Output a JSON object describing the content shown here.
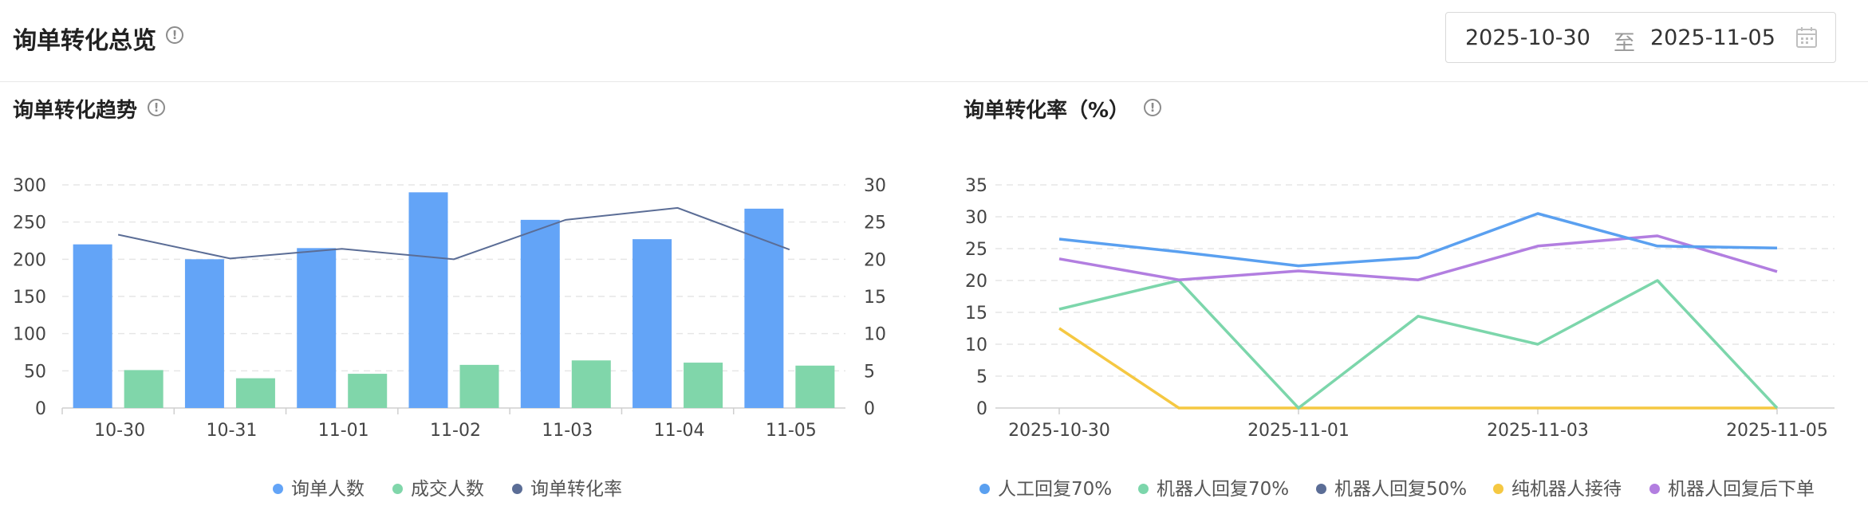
{
  "page": {
    "title": "询单转化总览",
    "date_start": "2025-10-30",
    "date_sep": "至",
    "date_end": "2025-11-05"
  },
  "chart_data": [
    {
      "type": "bar",
      "title": "询单转化趋势",
      "categories": [
        "10-30",
        "10-31",
        "11-01",
        "11-02",
        "11-03",
        "11-04",
        "11-05"
      ],
      "series": [
        {
          "name": "询单人数",
          "kind": "bar",
          "axis": "left",
          "color": "#63a4f7",
          "values": [
            220,
            200,
            215,
            290,
            253,
            227,
            268
          ]
        },
        {
          "name": "成交人数",
          "kind": "bar",
          "axis": "left",
          "color": "#80d6aa",
          "values": [
            51,
            40,
            46,
            58,
            64,
            61,
            57
          ]
        },
        {
          "name": "询单转化率",
          "kind": "line",
          "axis": "right",
          "color": "#5b6d96",
          "values": [
            23.3,
            20.1,
            21.4,
            20.0,
            25.3,
            26.9,
            21.3
          ]
        }
      ],
      "ylim_left": [
        0,
        300
      ],
      "yticks_left": [
        0,
        50,
        100,
        150,
        200,
        250,
        300
      ],
      "ylim_right": [
        0,
        30
      ],
      "yticks_right": [
        0,
        5,
        10,
        15,
        20,
        25,
        30
      ],
      "grid": true,
      "legend": "bottom"
    },
    {
      "type": "line",
      "title": "询单转化率（%）",
      "x": [
        "2025-10-30",
        "2025-10-31",
        "2025-11-01",
        "2025-11-02",
        "2025-11-03",
        "2025-11-04",
        "2025-11-05"
      ],
      "xticks": [
        "2025-10-30",
        "2025-11-01",
        "2025-11-03",
        "2025-11-05"
      ],
      "series": [
        {
          "name": "人工回复70%",
          "color": "#5aa0f0",
          "values": [
            26.5,
            24.5,
            22.3,
            23.6,
            30.5,
            25.4,
            25.1
          ]
        },
        {
          "name": "机器人回复70%",
          "color": "#7cd6ab",
          "values": [
            15.5,
            20.0,
            0,
            14.4,
            10.0,
            20.0,
            0
          ]
        },
        {
          "name": "机器人回复50%",
          "color": "#5b6d96",
          "values": [
            null,
            null,
            null,
            null,
            null,
            null,
            null
          ]
        },
        {
          "name": "纯机器人接待",
          "color": "#f5c842",
          "values": [
            12.5,
            0,
            0,
            0,
            0,
            0,
            0
          ]
        },
        {
          "name": "机器人回复后下单",
          "color": "#b27ee0",
          "values": [
            23.4,
            20.1,
            21.5,
            20.1,
            25.4,
            27.0,
            21.4
          ]
        }
      ],
      "ylim": [
        0,
        35
      ],
      "yticks": [
        0,
        5,
        10,
        15,
        20,
        25,
        30,
        35
      ],
      "grid": true,
      "legend": "bottom"
    }
  ]
}
